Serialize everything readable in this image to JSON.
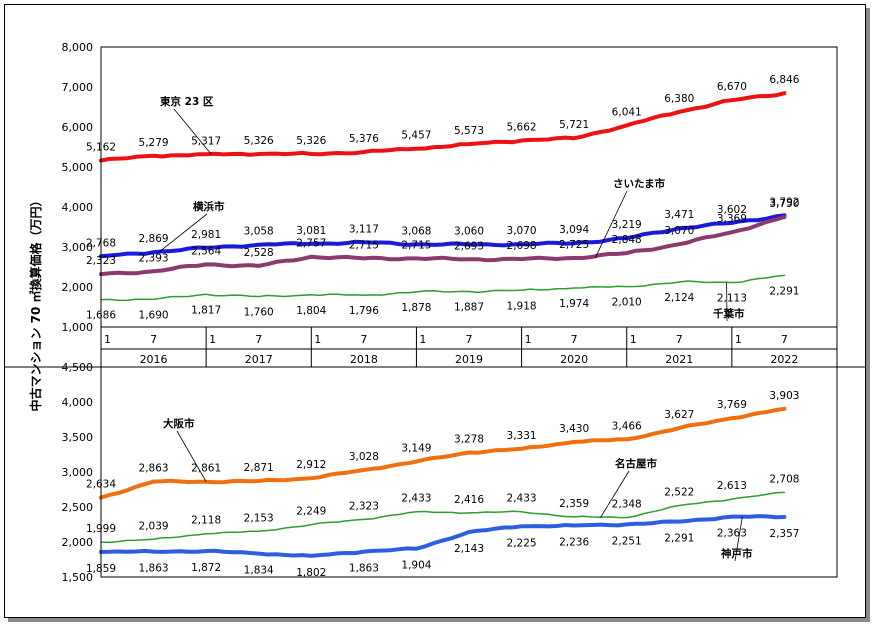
{
  "ylabel": "中古マンション 70 ㎡換算価格（万円）",
  "x_axis": {
    "years": [
      "2016",
      "2017",
      "2018",
      "2019",
      "2020",
      "2021",
      "2022"
    ],
    "month_ticks": [
      "1",
      "7"
    ]
  },
  "chart_data": [
    {
      "type": "line",
      "ylim": [
        1000,
        8000
      ],
      "yticks": [
        "1,000",
        "2,000",
        "3,000",
        "4,000",
        "5,000",
        "6,000",
        "7,000",
        "8,000"
      ],
      "series": [
        {
          "name": "東京 23 区",
          "color": "#ee1111",
          "labels": [
            {
              "t": 0.0,
              "value": 5162,
              "text": "5,162"
            },
            {
              "t": 0.5,
              "value": 5279,
              "text": "5,279"
            },
            {
              "t": 1.0,
              "value": 5317,
              "text": "5,317"
            },
            {
              "t": 1.5,
              "value": 5326,
              "text": "5,326"
            },
            {
              "t": 2.0,
              "value": 5326,
              "text": "5,326"
            },
            {
              "t": 2.5,
              "value": 5376,
              "text": "5,376"
            },
            {
              "t": 3.0,
              "value": 5457,
              "text": "5,457"
            },
            {
              "t": 3.5,
              "value": 5573,
              "text": "5,573"
            },
            {
              "t": 4.0,
              "value": 5662,
              "text": "5,662"
            },
            {
              "t": 4.5,
              "value": 5721,
              "text": "5,721"
            },
            {
              "t": 5.0,
              "value": 6041,
              "text": "6,041"
            },
            {
              "t": 5.5,
              "value": 6380,
              "text": "6,380"
            },
            {
              "t": 6.0,
              "value": 6670,
              "text": "6,670"
            },
            {
              "t": 6.5,
              "value": 6846,
              "text": "6,846"
            }
          ]
        },
        {
          "name": "横浜市",
          "color": "#1a1adb",
          "labels": [
            {
              "t": 0.0,
              "value": 2768,
              "text": "2,768"
            },
            {
              "t": 0.5,
              "value": 2869,
              "text": "2,869"
            },
            {
              "t": 1.0,
              "value": 2981,
              "text": "2,981"
            },
            {
              "t": 1.5,
              "value": 3058,
              "text": "3,058"
            },
            {
              "t": 2.0,
              "value": 3081,
              "text": "3,081"
            },
            {
              "t": 2.5,
              "value": 3117,
              "text": "3,117"
            },
            {
              "t": 3.0,
              "value": 3068,
              "text": "3,068"
            },
            {
              "t": 3.5,
              "value": 3060,
              "text": "3,060"
            },
            {
              "t": 4.0,
              "value": 3070,
              "text": "3,070"
            },
            {
              "t": 4.5,
              "value": 3094,
              "text": "3,094"
            },
            {
              "t": 5.0,
              "value": 3219,
              "text": "3,219"
            },
            {
              "t": 5.5,
              "value": 3471,
              "text": "3,471"
            },
            {
              "t": 6.0,
              "value": 3602,
              "text": "3,602"
            },
            {
              "t": 6.5,
              "value": 3792,
              "text": "3,792"
            }
          ]
        },
        {
          "name": "さいたま市",
          "color": "#8b3a6e",
          "labels": [
            {
              "t": 0.0,
              "value": 2323,
              "text": "2,323"
            },
            {
              "t": 0.5,
              "value": 2393,
              "text": "2,393"
            },
            {
              "t": 1.0,
              "value": 2564,
              "text": "2,564"
            },
            {
              "t": 1.5,
              "value": 2528,
              "text": "2,528"
            },
            {
              "t": 2.0,
              "value": 2757,
              "text": "2,757"
            },
            {
              "t": 2.5,
              "value": 2715,
              "text": "2,715"
            },
            {
              "t": 3.0,
              "value": 2715,
              "text": "2,715"
            },
            {
              "t": 3.5,
              "value": 2693,
              "text": "2,693"
            },
            {
              "t": 4.0,
              "value": 2698,
              "text": "2,698"
            },
            {
              "t": 4.5,
              "value": 2725,
              "text": "2,725"
            },
            {
              "t": 5.0,
              "value": 2848,
              "text": "2,848"
            },
            {
              "t": 5.5,
              "value": 3070,
              "text": "3,070"
            },
            {
              "t": 6.0,
              "value": 3369,
              "text": "3,369"
            },
            {
              "t": 6.5,
              "value": 3750,
              "text": "3,750"
            }
          ]
        },
        {
          "name": "千葉市",
          "color": "#2e9c2e",
          "labels": [
            {
              "t": 0.0,
              "value": 1686,
              "text": "1,686"
            },
            {
              "t": 0.5,
              "value": 1690,
              "text": "1,690"
            },
            {
              "t": 1.0,
              "value": 1817,
              "text": "1,817"
            },
            {
              "t": 1.5,
              "value": 1760,
              "text": "1,760"
            },
            {
              "t": 2.0,
              "value": 1804,
              "text": "1,804"
            },
            {
              "t": 2.5,
              "value": 1796,
              "text": "1,796"
            },
            {
              "t": 3.0,
              "value": 1878,
              "text": "1,878"
            },
            {
              "t": 3.5,
              "value": 1887,
              "text": "1,887"
            },
            {
              "t": 4.0,
              "value": 1918,
              "text": "1,918"
            },
            {
              "t": 4.5,
              "value": 1974,
              "text": "1,974"
            },
            {
              "t": 5.0,
              "value": 2010,
              "text": "2,010"
            },
            {
              "t": 5.5,
              "value": 2124,
              "text": "2,124"
            },
            {
              "t": 6.0,
              "value": 2113,
              "text": "2,113"
            },
            {
              "t": 6.5,
              "value": 2291,
              "text": "2,291"
            }
          ]
        }
      ]
    },
    {
      "type": "line",
      "ylim": [
        1500,
        4500
      ],
      "yticks": [
        "1,500",
        "2,000",
        "2,500",
        "3,000",
        "3,500",
        "4,000",
        "4,500"
      ],
      "series": [
        {
          "name": "大阪市",
          "color": "#f07010",
          "labels": [
            {
              "t": 0.0,
              "value": 2634,
              "text": "2,634"
            },
            {
              "t": 0.5,
              "value": 2863,
              "text": "2,863"
            },
            {
              "t": 1.0,
              "value": 2861,
              "text": "2,861"
            },
            {
              "t": 1.5,
              "value": 2871,
              "text": "2,871"
            },
            {
              "t": 2.0,
              "value": 2912,
              "text": "2,912"
            },
            {
              "t": 2.5,
              "value": 3028,
              "text": "3,028"
            },
            {
              "t": 3.0,
              "value": 3149,
              "text": "3,149"
            },
            {
              "t": 3.5,
              "value": 3278,
              "text": "3,278"
            },
            {
              "t": 4.0,
              "value": 3331,
              "text": "3,331"
            },
            {
              "t": 4.5,
              "value": 3430,
              "text": "3,430"
            },
            {
              "t": 5.0,
              "value": 3466,
              "text": "3,466"
            },
            {
              "t": 5.5,
              "value": 3627,
              "text": "3,627"
            },
            {
              "t": 6.0,
              "value": 3769,
              "text": "3,769"
            },
            {
              "t": 6.5,
              "value": 3903,
              "text": "3,903"
            }
          ]
        },
        {
          "name": "名古屋市",
          "color": "#2e9c2e",
          "labels": [
            {
              "t": 0.0,
              "value": 1999,
              "text": "1,999"
            },
            {
              "t": 0.5,
              "value": 2039,
              "text": "2,039"
            },
            {
              "t": 1.0,
              "value": 2118,
              "text": "2,118"
            },
            {
              "t": 1.5,
              "value": 2153,
              "text": "2,153"
            },
            {
              "t": 2.0,
              "value": 2249,
              "text": "2,249"
            },
            {
              "t": 2.5,
              "value": 2323,
              "text": "2,323"
            },
            {
              "t": 3.0,
              "value": 2433,
              "text": "2,433"
            },
            {
              "t": 3.5,
              "value": 2416,
              "text": "2,416"
            },
            {
              "t": 4.0,
              "value": 2433,
              "text": "2,433"
            },
            {
              "t": 4.5,
              "value": 2359,
              "text": "2,359"
            },
            {
              "t": 5.0,
              "value": 2348,
              "text": "2,348"
            },
            {
              "t": 5.5,
              "value": 2522,
              "text": "2,522"
            },
            {
              "t": 6.0,
              "value": 2613,
              "text": "2,613"
            },
            {
              "t": 6.5,
              "value": 2708,
              "text": "2,708"
            }
          ]
        },
        {
          "name": "神戸市",
          "color": "#2b5fe0",
          "labels": [
            {
              "t": 0.0,
              "value": 1859,
              "text": "1,859"
            },
            {
              "t": 0.5,
              "value": 1863,
              "text": "1,863"
            },
            {
              "t": 1.0,
              "value": 1872,
              "text": "1,872"
            },
            {
              "t": 1.5,
              "value": 1834,
              "text": "1,834"
            },
            {
              "t": 2.0,
              "value": 1802,
              "text": "1,802"
            },
            {
              "t": 2.5,
              "value": 1863,
              "text": "1,863"
            },
            {
              "t": 3.0,
              "value": 1904,
              "text": "1,904"
            },
            {
              "t": 3.5,
              "value": 2143,
              "text": "2,143"
            },
            {
              "t": 4.0,
              "value": 2225,
              "text": "2,225"
            },
            {
              "t": 4.5,
              "value": 2236,
              "text": "2,236"
            },
            {
              "t": 5.0,
              "value": 2251,
              "text": "2,251"
            },
            {
              "t": 5.5,
              "value": 2291,
              "text": "2,291"
            },
            {
              "t": 6.0,
              "value": 2363,
              "text": "2,363"
            },
            {
              "t": 6.5,
              "value": 2357,
              "text": "2,357"
            }
          ]
        }
      ]
    }
  ]
}
